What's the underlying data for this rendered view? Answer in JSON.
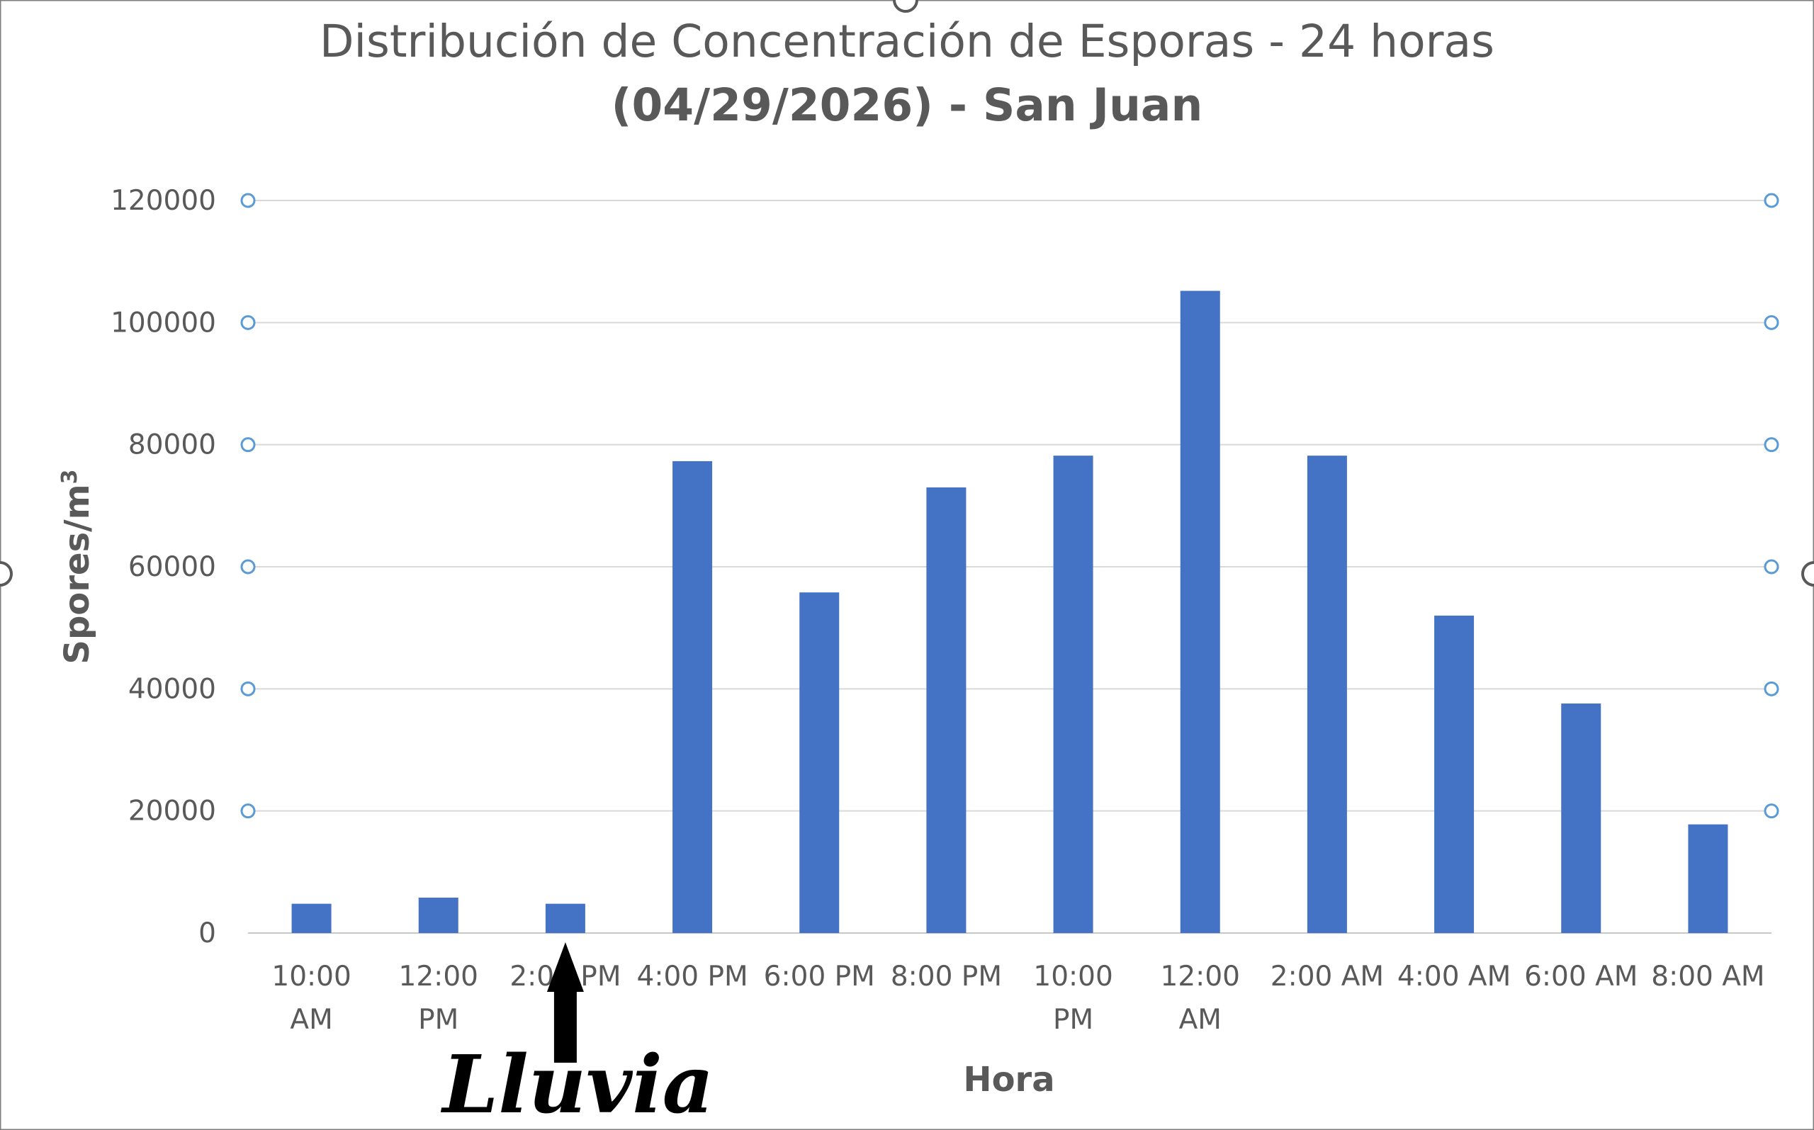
{
  "chart_data": {
    "type": "bar",
    "title": "Distribución de Concentración de Esporas - 24 horas",
    "subtitle": "(04/29/2026) - San Juan",
    "xlabel": "Hora",
    "ylabel": "Spores/m",
    "ylabel_superscript": "3",
    "categories": [
      [
        "10:00",
        "AM"
      ],
      [
        "12:00",
        "PM"
      ],
      [
        "2:00 PM"
      ],
      [
        "4:00 PM"
      ],
      [
        "6:00 PM"
      ],
      [
        "8:00 PM"
      ],
      [
        "10:00",
        "PM"
      ],
      [
        "12:00",
        "AM"
      ],
      [
        "2:00 AM"
      ],
      [
        "4:00 AM"
      ],
      [
        "6:00 AM"
      ],
      [
        "8:00 AM"
      ]
    ],
    "values": [
      4800,
      5800,
      4800,
      77300,
      55800,
      73000,
      78200,
      105200,
      78200,
      52000,
      37600,
      17800
    ],
    "ylim": [
      0,
      120000
    ],
    "yticks": [
      0,
      20000,
      40000,
      60000,
      80000,
      100000,
      120000
    ],
    "grid": true,
    "bar_color": "#4472C4",
    "annotation": {
      "text": "Lluvia",
      "category_index": 2
    }
  }
}
